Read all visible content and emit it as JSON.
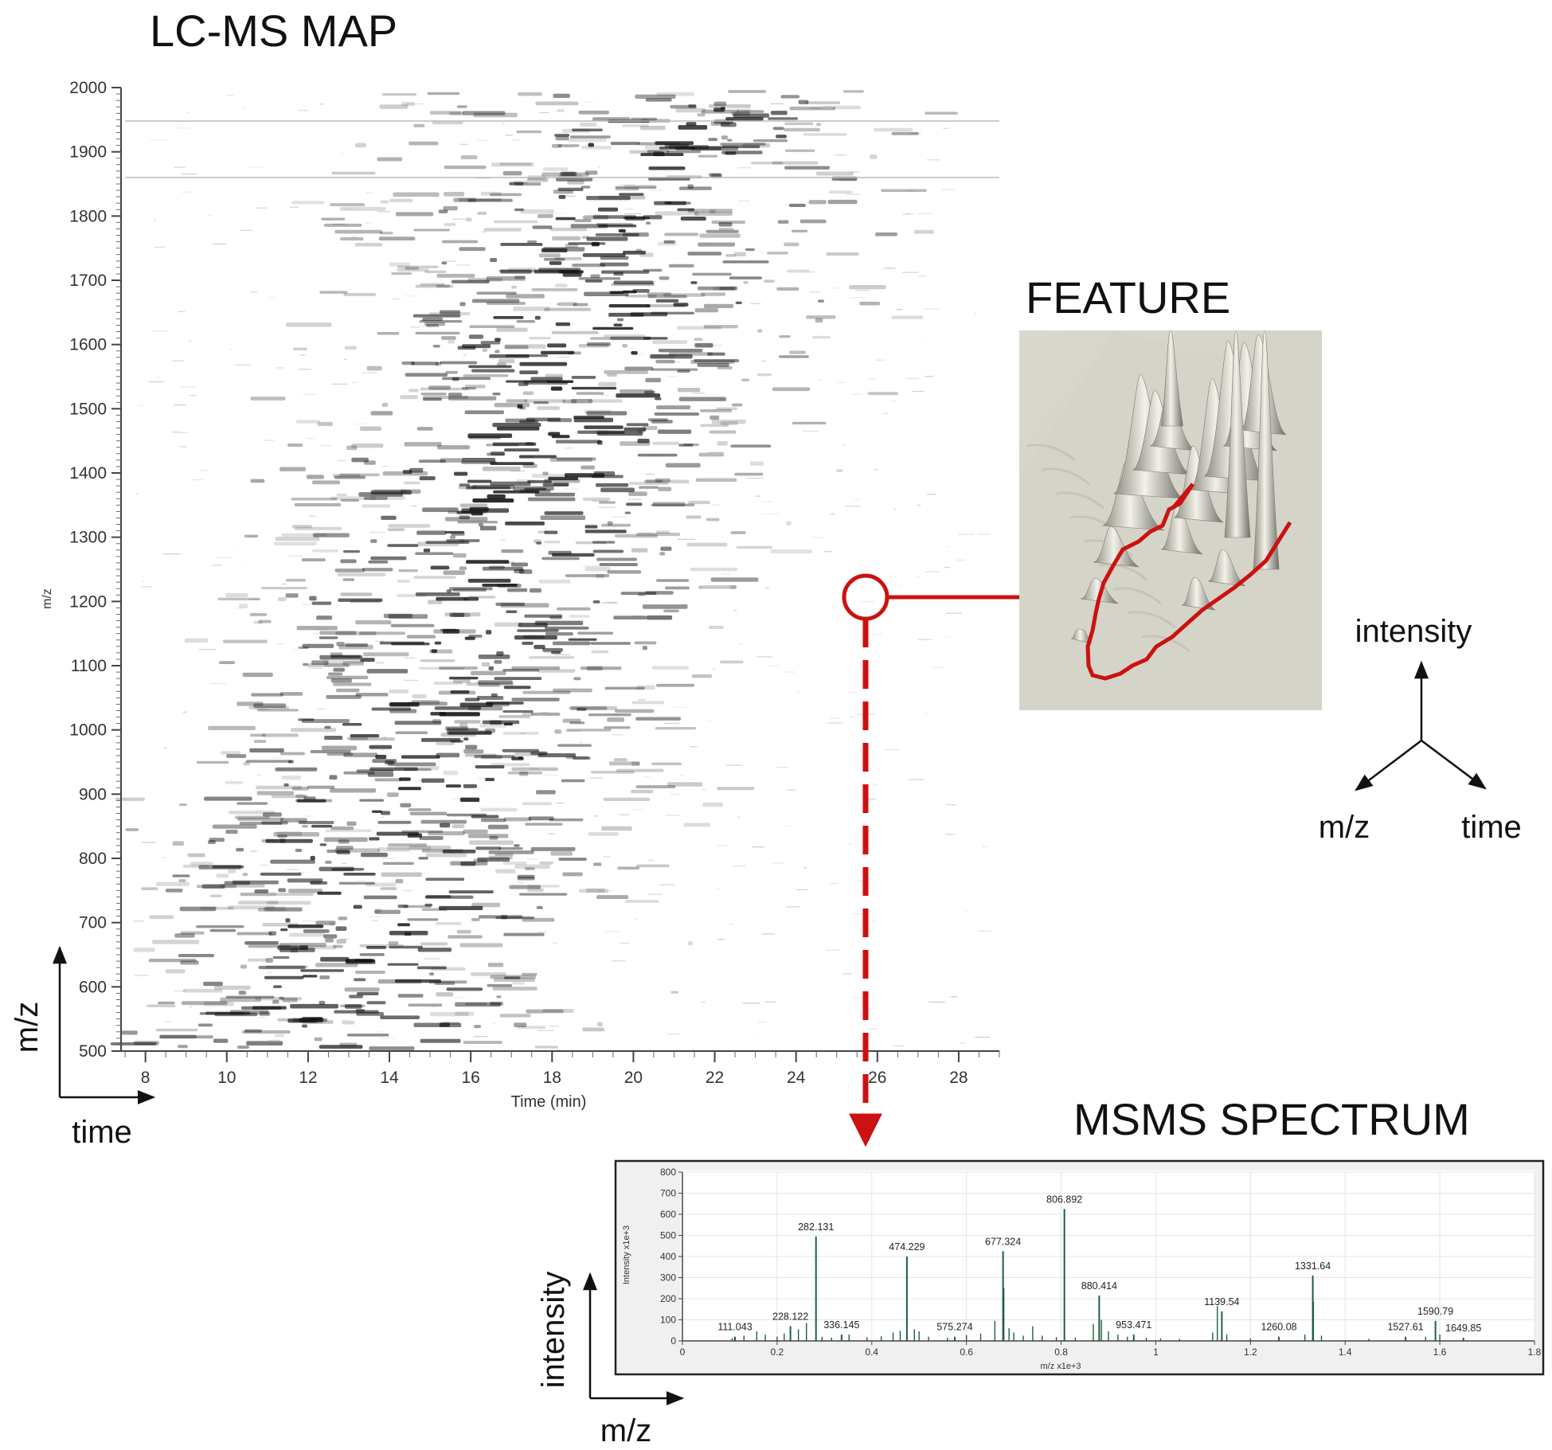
{
  "titles": {
    "lcms": "LC-MS MAP",
    "feature": "FEATURE",
    "msms": "MSMS SPECTRUM"
  },
  "lcms_map": {
    "y_axis_label": "m/z",
    "x_axis_label": "Time (min)",
    "y_ticks": [
      "2000",
      "1900",
      "1800",
      "1700",
      "1600",
      "1500",
      "1400",
      "1300",
      "1200",
      "1100",
      "1000",
      "900",
      "800",
      "700",
      "600",
      "500"
    ],
    "x_ticks": [
      "8",
      "10",
      "12",
      "14",
      "16",
      "18",
      "20",
      "22",
      "24",
      "26",
      "28"
    ],
    "y_range": [
      500,
      2000
    ],
    "x_range": [
      7.4,
      29
    ],
    "highlight": {
      "time": 25.8,
      "mz": 1200
    }
  },
  "map_axes_key": {
    "vertical": "m/z",
    "horizontal": "time"
  },
  "feature_axes_key": {
    "up": "intensity",
    "left": "m/z",
    "right": "time"
  },
  "spectrum_axes_key": {
    "vertical": "intensity",
    "horizontal": "m/z"
  },
  "chart_data": {
    "type": "bar",
    "xlabel": "m/z x1e+3",
    "ylabel": "Intensity x1e+3",
    "xlim": [
      0,
      1.8
    ],
    "ylim": [
      0,
      800
    ],
    "x_ticks": [
      "0",
      "0.2",
      "0.4",
      "0.6",
      "0.8",
      "1",
      "1.2",
      "1.4",
      "1.6",
      "1.8"
    ],
    "y_ticks": [
      "0",
      "100",
      "200",
      "300",
      "400",
      "500",
      "600",
      "700",
      "800"
    ],
    "labeled_peaks": [
      {
        "mz": 111.043,
        "intensity": 20,
        "label": "111.043"
      },
      {
        "mz": 228.122,
        "intensity": 70,
        "label": "228.122"
      },
      {
        "mz": 282.131,
        "intensity": 495,
        "label": "282.131"
      },
      {
        "mz": 336.145,
        "intensity": 30,
        "label": "336.145"
      },
      {
        "mz": 474.229,
        "intensity": 400,
        "label": "474.229"
      },
      {
        "mz": 575.274,
        "intensity": 20,
        "label": "575.274"
      },
      {
        "mz": 677.324,
        "intensity": 425,
        "label": "677.324"
      },
      {
        "mz": 806.892,
        "intensity": 625,
        "label": "806.892"
      },
      {
        "mz": 880.414,
        "intensity": 215,
        "label": "880.414"
      },
      {
        "mz": 953.471,
        "intensity": 30,
        "label": "953.471"
      },
      {
        "mz": 1139.54,
        "intensity": 140,
        "label": "1139.54"
      },
      {
        "mz": 1260.08,
        "intensity": 20,
        "label": "1260.08"
      },
      {
        "mz": 1331.64,
        "intensity": 310,
        "label": "1331.64"
      },
      {
        "mz": 1527.61,
        "intensity": 20,
        "label": "1527.61"
      },
      {
        "mz": 1590.79,
        "intensity": 95,
        "label": "1590.79"
      },
      {
        "mz": 1649.85,
        "intensity": 15,
        "label": "1649.85"
      }
    ],
    "minor_peaks": [
      {
        "mz": 105,
        "intensity": 12
      },
      {
        "mz": 130,
        "intensity": 25
      },
      {
        "mz": 157,
        "intensity": 45
      },
      {
        "mz": 175,
        "intensity": 30
      },
      {
        "mz": 200,
        "intensity": 20
      },
      {
        "mz": 215,
        "intensity": 35
      },
      {
        "mz": 245,
        "intensity": 55
      },
      {
        "mz": 262,
        "intensity": 85
      },
      {
        "mz": 295,
        "intensity": 20
      },
      {
        "mz": 315,
        "intensity": 15
      },
      {
        "mz": 352,
        "intensity": 30
      },
      {
        "mz": 390,
        "intensity": 18
      },
      {
        "mz": 420,
        "intensity": 22
      },
      {
        "mz": 445,
        "intensity": 40
      },
      {
        "mz": 460,
        "intensity": 48
      },
      {
        "mz": 490,
        "intensity": 55
      },
      {
        "mz": 500,
        "intensity": 45
      },
      {
        "mz": 520,
        "intensity": 20
      },
      {
        "mz": 560,
        "intensity": 15
      },
      {
        "mz": 600,
        "intensity": 28
      },
      {
        "mz": 630,
        "intensity": 35
      },
      {
        "mz": 660,
        "intensity": 95
      },
      {
        "mz": 679,
        "intensity": 250
      },
      {
        "mz": 690,
        "intensity": 60
      },
      {
        "mz": 700,
        "intensity": 40
      },
      {
        "mz": 720,
        "intensity": 25
      },
      {
        "mz": 740,
        "intensity": 70
      },
      {
        "mz": 760,
        "intensity": 25
      },
      {
        "mz": 790,
        "intensity": 18
      },
      {
        "mz": 830,
        "intensity": 15
      },
      {
        "mz": 868,
        "intensity": 80
      },
      {
        "mz": 885,
        "intensity": 100
      },
      {
        "mz": 900,
        "intensity": 45
      },
      {
        "mz": 920,
        "intensity": 30
      },
      {
        "mz": 940,
        "intensity": 20
      },
      {
        "mz": 980,
        "intensity": 15
      },
      {
        "mz": 1010,
        "intensity": 12
      },
      {
        "mz": 1050,
        "intensity": 10
      },
      {
        "mz": 1120,
        "intensity": 40
      },
      {
        "mz": 1130,
        "intensity": 165
      },
      {
        "mz": 1150,
        "intensity": 30
      },
      {
        "mz": 1200,
        "intensity": 12
      },
      {
        "mz": 1315,
        "intensity": 30
      },
      {
        "mz": 1333,
        "intensity": 185
      },
      {
        "mz": 1350,
        "intensity": 25
      },
      {
        "mz": 1450,
        "intensity": 10
      },
      {
        "mz": 1570,
        "intensity": 20
      },
      {
        "mz": 1600,
        "intensity": 30
      }
    ]
  },
  "colors": {
    "highlight_red": "#cc1111",
    "feature_bg": "#d6d6ca",
    "spectrum_bar": "#1f5f3f",
    "map_ink": "#111111"
  }
}
